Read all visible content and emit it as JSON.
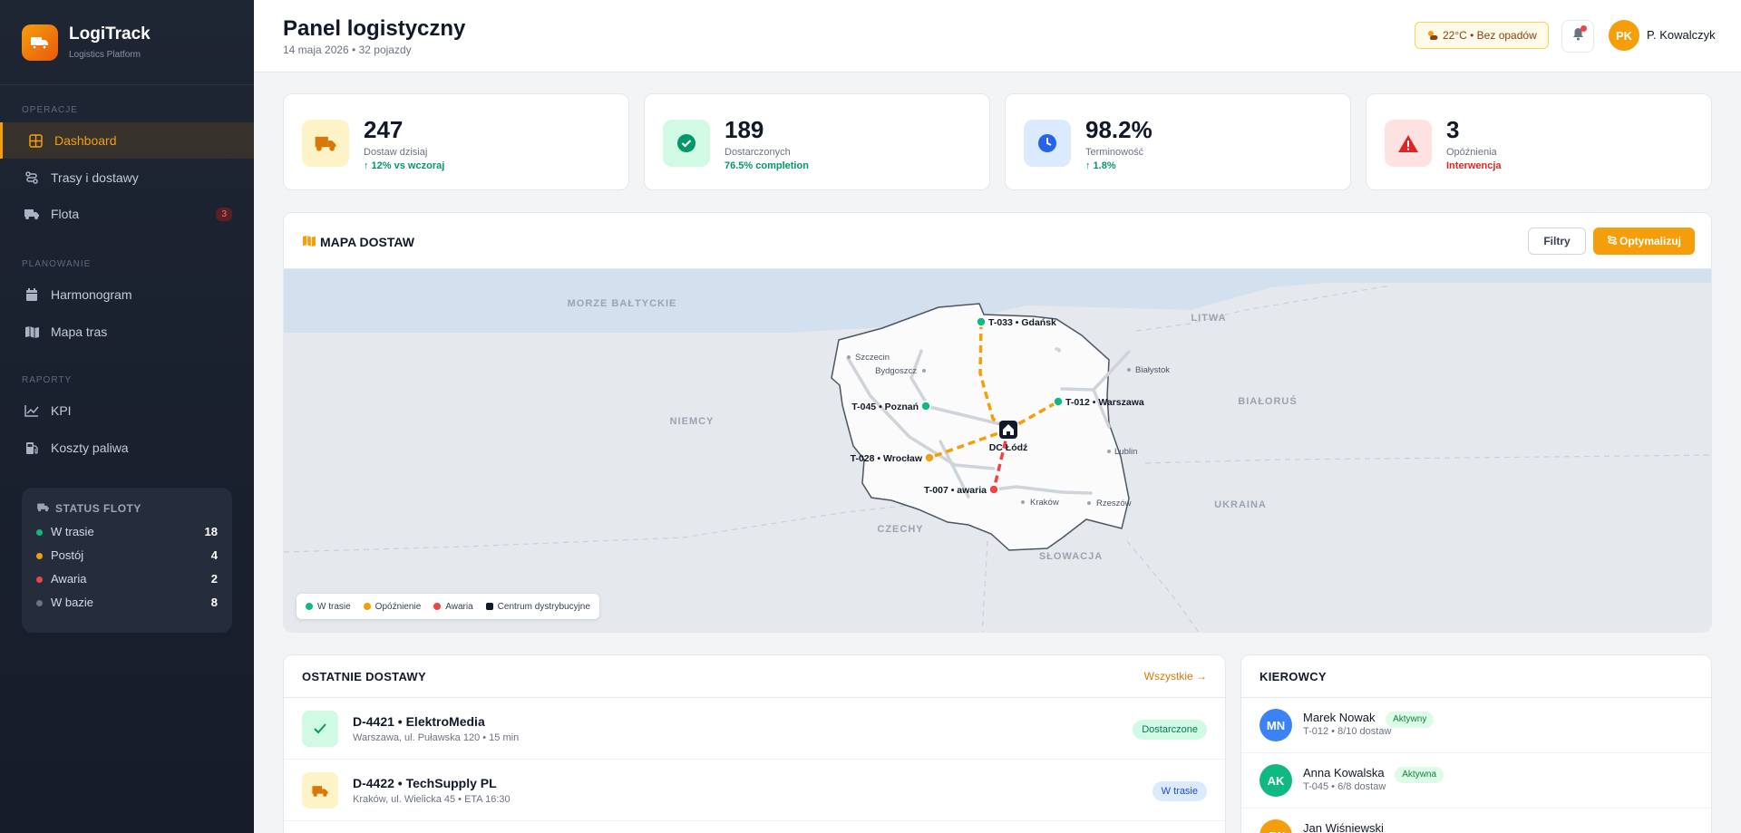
{
  "brand": {
    "name": "LogiTrack",
    "subtitle": "Logistics Platform"
  },
  "sidebar": {
    "sections": [
      "OPERACJE",
      "PLANOWANIE",
      "RAPORTY"
    ],
    "items": [
      {
        "label": "Dashboard",
        "icon": "grid-icon",
        "active": true
      },
      {
        "label": "Trasy i dostawy",
        "icon": "route-icon"
      },
      {
        "label": "Flota",
        "icon": "truck-icon",
        "badge": "3"
      },
      {
        "label": "Harmonogram",
        "icon": "calendar-icon"
      },
      {
        "label": "Mapa tras",
        "icon": "map-icon"
      },
      {
        "label": "KPI",
        "icon": "chart-line-icon"
      },
      {
        "label": "Koszty paliwa",
        "icon": "fuel-icon"
      }
    ],
    "fleet_status": {
      "title": "STATUS FLOTY",
      "rows": [
        {
          "label": "W trasie",
          "value": "18",
          "color": "#10b981"
        },
        {
          "label": "Postój",
          "value": "4",
          "color": "#f59e0b"
        },
        {
          "label": "Awaria",
          "value": "2",
          "color": "#ef4444"
        },
        {
          "label": "W bazie",
          "value": "8",
          "color": "#6b7280"
        }
      ]
    }
  },
  "header": {
    "title": "Panel logistyczny",
    "subtitle": "14 maja 2026 • 32 pojazdy",
    "weather": "22°C • Bez opadów",
    "user_initials": "PK",
    "user_name": "P. Kowalczyk"
  },
  "kpis": [
    {
      "value": "247",
      "label": "Dostaw dzisiaj",
      "trend": "↑ 12% vs wczoraj",
      "trend_color": "#059669",
      "icon": "truck-icon",
      "icon_bg": "#fef3c7",
      "icon_color": "#d97706"
    },
    {
      "value": "189",
      "label": "Dostarczonych",
      "trend": "76.5% completion",
      "trend_color": "#059669",
      "icon": "check-circle-icon",
      "icon_bg": "#d1fae5",
      "icon_color": "#059669"
    },
    {
      "value": "98.2%",
      "label": "Terminowość",
      "trend": "↑ 1.8%",
      "trend_color": "#059669",
      "icon": "clock-icon",
      "icon_bg": "#dbeafe",
      "icon_color": "#2563eb"
    },
    {
      "value": "3",
      "label": "Opóźnienia",
      "trend": "Interwencja",
      "trend_color": "#dc2626",
      "icon": "warning-icon",
      "icon_bg": "#fee2e2",
      "icon_color": "#dc2626"
    }
  ],
  "map": {
    "title": "MAPA DOSTAW",
    "filter_label": "Filtry",
    "optimize_label": "Optymalizuj",
    "regions": [
      "MORZE BAŁTYCKIE",
      "LITWA",
      "NIEMCY",
      "BIAŁORUŚ",
      "CZECHY",
      "UKRAINA",
      "SŁOWACJA"
    ],
    "cities": [
      "Szczecin",
      "Bydgoszcz",
      "Białystok",
      "Lublin",
      "Kraków",
      "Rzeszów"
    ],
    "hub_label": "DC Łódź",
    "vehicles": [
      {
        "label": "T-033 • Gdańsk",
        "status": "ok"
      },
      {
        "label": "T-045 • Poznań",
        "status": "ok"
      },
      {
        "label": "T-012 • Warszawa",
        "status": "ok"
      },
      {
        "label": "T-028 • Wrocław",
        "status": "delay"
      },
      {
        "label": "T-007 • awaria",
        "status": "fail"
      }
    ],
    "legend": [
      "W trasie",
      "Opóźnienie",
      "Awaria",
      "Centrum dystrybucyjne"
    ]
  },
  "deliveries": {
    "title": "OSTATNIE DOSTAWY",
    "view_all": "Wszystkie →",
    "rows": [
      {
        "name": "D-4421 • ElektroMedia",
        "meta": "Warszawa, ul. Puławska 120 • 15 min",
        "status": "Dostarczone",
        "icon": "check-icon"
      },
      {
        "name": "D-4422 • TechSupply PL",
        "meta": "Kraków, ul. Wielicka 45 • ETA 16:30",
        "status": "W trasie",
        "icon": "truck-icon"
      }
    ]
  },
  "drivers": {
    "title": "KIEROWCY",
    "rows": [
      {
        "initials": "MN",
        "name": "Marek Nowak",
        "meta": "T-012 • 8/10 dostaw",
        "badge": "Aktywny",
        "color": "#3b82f6"
      },
      {
        "initials": "AK",
        "name": "Anna Kowalska",
        "meta": "T-045 • 6/8 dostaw",
        "badge": "Aktywna",
        "color": "#10b981"
      },
      {
        "initials": "JW",
        "name": "Jan Wiśniewski",
        "meta": "",
        "badge": "",
        "color": "#f59e0b"
      }
    ]
  },
  "colors": {
    "accent": "#f59e0b",
    "ok": "#10b981",
    "delay": "#f59e0b",
    "fail": "#ef4444"
  }
}
